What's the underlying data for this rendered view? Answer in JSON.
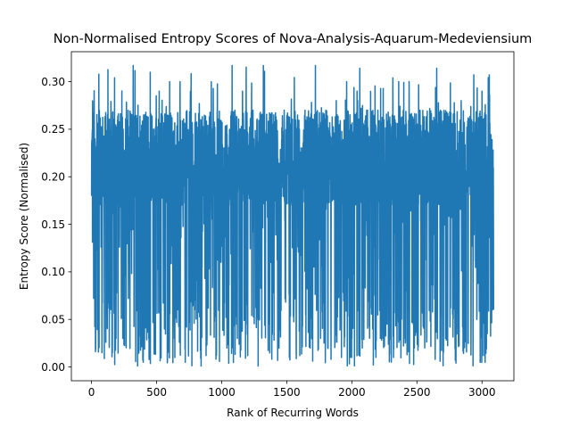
{
  "chart_data": {
    "type": "line",
    "title": "Non-Normalised Entropy Scores of Nova-Analysis-Aquarum-Medeviensium",
    "xlabel": "Rank of Recurring Words",
    "ylabel": "Entropy Score (Normalised)",
    "xlim": [
      -155,
      3245
    ],
    "ylim": [
      -0.0145,
      0.3315
    ],
    "xticks": [
      0,
      500,
      1000,
      1500,
      2000,
      2500,
      3000
    ],
    "xtick_labels": [
      "0",
      "500",
      "1000",
      "1500",
      "2000",
      "2500",
      "3000"
    ],
    "yticks": [
      0.0,
      0.05,
      0.1,
      0.15,
      0.2,
      0.25,
      0.3
    ],
    "ytick_labels": [
      "0.00",
      "0.05",
      "0.10",
      "0.15",
      "0.20",
      "0.25",
      "0.30"
    ],
    "grid": false,
    "legend": "none",
    "series": [
      {
        "color": "#1f77b4",
        "x_start": 0,
        "x_step": 1,
        "n_points": 3090,
        "y_min": 0.001,
        "y_max": 0.317,
        "typical_range": [
          0.17,
          0.27
        ],
        "representative_values": [
          0.18,
          0.23,
          0.015,
          0.2,
          0.015,
          0.26,
          0.03,
          0.245,
          0.317,
          0.015,
          0.265,
          0.03,
          0.25,
          0.29,
          0.04,
          0.3,
          0.01,
          0.3,
          0.005,
          0.29,
          0.06,
          0.26,
          0.012,
          0.3,
          0.012,
          0.25,
          0.02,
          0.317,
          0.03,
          0.29,
          0.012,
          0.27,
          0.001,
          0.317,
          0.045,
          0.265,
          0.02,
          0.27,
          0.01,
          0.23,
          0.012,
          0.27,
          0.02,
          0.317,
          0.03,
          0.27,
          0.008,
          0.28,
          0.01,
          0.3,
          0.03,
          0.29,
          0.02,
          0.27,
          0.04,
          0.27,
          0.03,
          0.265,
          0.01,
          0.3,
          0.03,
          0.3,
          0.02,
          0.27,
          0.02,
          0.255,
          0.008,
          0.27,
          0.03,
          0.265,
          0.004,
          0.28,
          0.03,
          0.26,
          0.05,
          0.29,
          0.035,
          0.06
        ]
      }
    ]
  }
}
